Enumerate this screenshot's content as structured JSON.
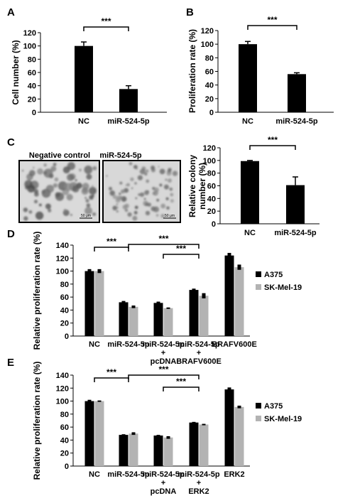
{
  "panels": {
    "A": "A",
    "B": "B",
    "C": "C",
    "D": "D",
    "E": "E"
  },
  "images": {
    "left_title": "Negative control",
    "right_title": "miR-524-5p",
    "left_scale": "50 μm",
    "right_scale": "50 μm"
  },
  "chart_data": [
    {
      "panel": "A",
      "type": "bar",
      "categories": [
        "NC",
        "miR-524-5p"
      ],
      "values": [
        100,
        35
      ],
      "errors": [
        6,
        5
      ],
      "ylabel": "Cell number (%)",
      "ylim": [
        0,
        120
      ],
      "yticks": [
        0,
        20,
        40,
        60,
        80,
        100,
        120
      ],
      "significance": [
        {
          "from": 0,
          "to": 1,
          "label": "***"
        }
      ],
      "colors": [
        "#000000"
      ]
    },
    {
      "panel": "B",
      "type": "bar",
      "categories": [
        "NC",
        "miR-524-5p"
      ],
      "values": [
        100,
        56
      ],
      "errors": [
        4,
        2
      ],
      "ylabel": "Proliferation rate (%)",
      "ylim": [
        0,
        120
      ],
      "yticks": [
        0,
        20,
        40,
        60,
        80,
        100,
        120
      ],
      "significance": [
        {
          "from": 0,
          "to": 1,
          "label": "***"
        }
      ],
      "colors": [
        "#000000"
      ]
    },
    {
      "panel": "C",
      "type": "bar",
      "categories": [
        "NC",
        "miR-524-5p"
      ],
      "values": [
        99,
        61
      ],
      "errors": [
        1,
        13
      ],
      "ylabel": [
        "Relative colony",
        "number (%)"
      ],
      "ylim": [
        0,
        120
      ],
      "yticks": [
        0,
        20,
        40,
        60,
        80,
        100,
        120
      ],
      "significance": [
        {
          "from": 0,
          "to": 1,
          "label": "***"
        }
      ],
      "colors": [
        "#000000"
      ]
    },
    {
      "panel": "D",
      "type": "bar",
      "categories": [
        [
          "NC"
        ],
        [
          "miR-524-5p"
        ],
        [
          "miR-524-5p",
          "+",
          "pcDNA"
        ],
        [
          "miR-524-5p",
          "+",
          "BRAFV600E"
        ],
        [
          "BRAFV600E"
        ]
      ],
      "series": [
        {
          "name": "A375",
          "values": [
            100,
            52,
            51,
            71,
            124
          ],
          "errors": [
            3,
            2,
            2,
            2,
            4
          ],
          "color": "#000000"
        },
        {
          "name": "SK-Mel-19",
          "values": [
            100,
            45,
            43,
            62,
            106
          ],
          "errors": [
            3,
            2,
            1,
            4,
            4
          ],
          "color": "#b3b3b3"
        }
      ],
      "ylabel": "Relative proliferation rate (%)",
      "ylim": [
        0,
        140
      ],
      "yticks": [
        0,
        20,
        40,
        60,
        80,
        100,
        120,
        140
      ],
      "significance": [
        {
          "from": 0,
          "to": 1,
          "label": "***"
        },
        {
          "from": 1,
          "to": 3,
          "label": "***"
        },
        {
          "from": 2,
          "to": 3,
          "label": "***"
        }
      ],
      "legend": "right"
    },
    {
      "panel": "E",
      "type": "bar",
      "categories": [
        [
          "NC"
        ],
        [
          "miR-524-5p"
        ],
        [
          "miR-524-5p",
          "+",
          "pcDNA"
        ],
        [
          "miR-524-5p",
          "+",
          "ERK2"
        ],
        [
          "ERK2"
        ]
      ],
      "series": [
        {
          "name": "A375",
          "values": [
            100,
            48,
            47,
            67,
            118
          ],
          "errors": [
            2,
            1,
            1,
            1,
            3
          ],
          "color": "#000000"
        },
        {
          "name": "SK-Mel-19",
          "values": [
            100,
            50,
            44,
            64,
            91
          ],
          "errors": [
            1,
            2,
            2,
            1,
            2
          ],
          "color": "#b3b3b3"
        }
      ],
      "ylabel": "Relative proliferation rate (%)",
      "ylim": [
        0,
        140
      ],
      "yticks": [
        0,
        20,
        40,
        60,
        80,
        100,
        120,
        140
      ],
      "significance": [
        {
          "from": 0,
          "to": 1,
          "label": "***"
        },
        {
          "from": 1,
          "to": 3,
          "label": "***"
        },
        {
          "from": 2,
          "to": 3,
          "label": "***"
        }
      ],
      "legend": "right"
    }
  ]
}
